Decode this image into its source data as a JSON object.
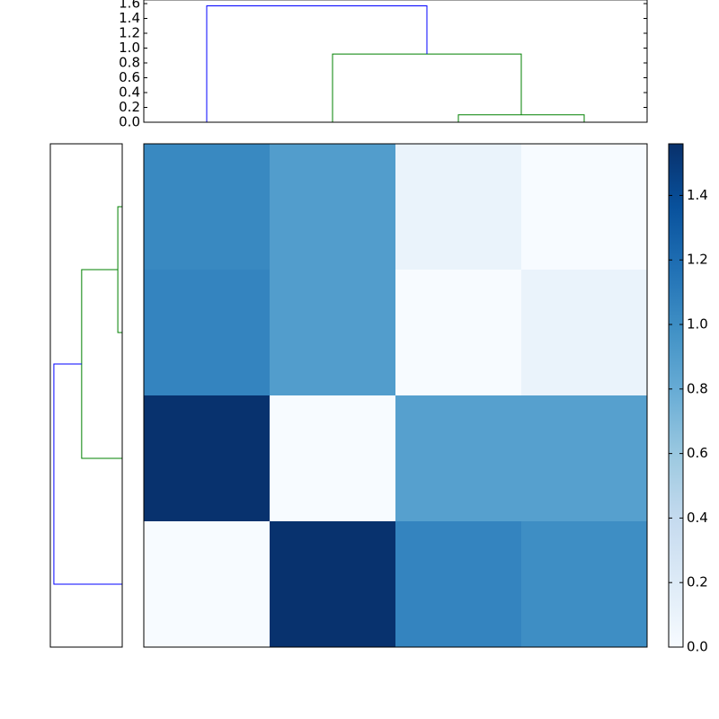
{
  "chart_data": {
    "type": "clustermap",
    "heatmap": {
      "values": [
        [
          1.03,
          0.9,
          0.1,
          0.0
        ],
        [
          1.06,
          0.9,
          0.0,
          0.1
        ],
        [
          1.55,
          0.0,
          0.88,
          0.88
        ],
        [
          0.0,
          1.55,
          1.06,
          1.0
        ]
      ],
      "cmap": "Blues",
      "clim": [
        0,
        1.56
      ],
      "cticks": [
        {
          "value": 0,
          "label": "0.0"
        },
        {
          "value": 0.2,
          "label": "0.2"
        },
        {
          "value": 0.4,
          "label": "0.4"
        },
        {
          "value": 0.6,
          "label": "0.6"
        },
        {
          "value": 0.8,
          "label": "0.8"
        },
        {
          "value": 1.0,
          "label": "1.0"
        },
        {
          "value": 1.2,
          "label": "1.2"
        },
        {
          "value": 1.4,
          "label": "1.4"
        }
      ]
    },
    "top_dendrogram": {
      "icoord": [
        [
          25,
          25,
          35,
          35
        ],
        [
          15,
          15,
          30,
          30
        ],
        [
          5,
          5,
          22.5,
          22.5
        ]
      ],
      "dcoord": [
        [
          0,
          0.1,
          0.1,
          0
        ],
        [
          0,
          0.92,
          0.92,
          0.1
        ],
        [
          0,
          1.57,
          1.57,
          0.92
        ]
      ],
      "colors": [
        "#008000",
        "#008000",
        "#0000ff"
      ],
      "ilim": [
        0,
        40
      ],
      "ylim": [
        0,
        1.65
      ],
      "yticks": [
        {
          "value": 0,
          "label": "0.0"
        },
        {
          "value": 0.2,
          "label": "0.2"
        },
        {
          "value": 0.4,
          "label": "0.4"
        },
        {
          "value": 0.6,
          "label": "0.6"
        },
        {
          "value": 0.8,
          "label": "0.8"
        },
        {
          "value": 1.0,
          "label": "1.0"
        },
        {
          "value": 1.2,
          "label": "1.2"
        },
        {
          "value": 1.4,
          "label": "1.4"
        },
        {
          "value": 1.6,
          "label": "1.6"
        }
      ]
    },
    "left_dendrogram": {
      "icoord": [
        [
          25,
          25,
          35,
          35
        ],
        [
          15,
          15,
          30,
          30
        ],
        [
          5,
          5,
          22.5,
          22.5
        ]
      ],
      "dcoord": [
        [
          0,
          0.1,
          0.1,
          0
        ],
        [
          0,
          0.92,
          0.92,
          0.1
        ],
        [
          0,
          1.55,
          1.55,
          0.92
        ]
      ],
      "colors": [
        "#008000",
        "#008000",
        "#0000ff"
      ],
      "ilim": [
        0,
        40
      ],
      "xlim": [
        1.63,
        0
      ]
    }
  }
}
